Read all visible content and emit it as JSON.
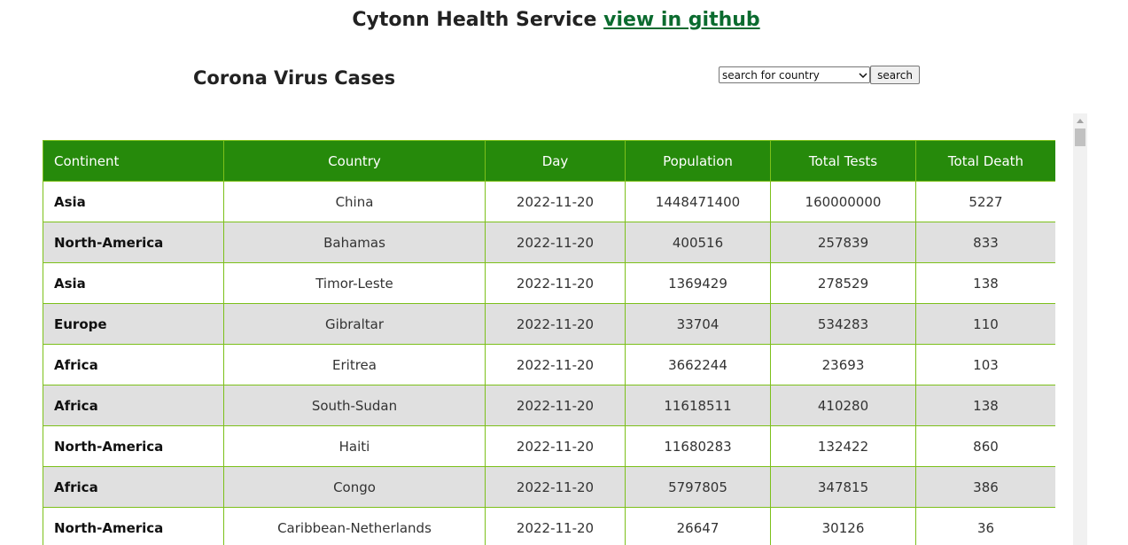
{
  "header": {
    "title": "Cytonn Health Service",
    "github_link": "view in github"
  },
  "main": {
    "heading": "Corona Virus Cases",
    "search": {
      "selected_option": "search for country",
      "button_label": "search"
    }
  },
  "table": {
    "columns": [
      "Continent",
      "Country",
      "Day",
      "Population",
      "Total Tests",
      "Total Death"
    ],
    "rows": [
      [
        "Asia",
        "China",
        "2022-11-20",
        "1448471400",
        "160000000",
        "5227"
      ],
      [
        "North-America",
        "Bahamas",
        "2022-11-20",
        "400516",
        "257839",
        "833"
      ],
      [
        "Asia",
        "Timor-Leste",
        "2022-11-20",
        "1369429",
        "278529",
        "138"
      ],
      [
        "Europe",
        "Gibraltar",
        "2022-11-20",
        "33704",
        "534283",
        "110"
      ],
      [
        "Africa",
        "Eritrea",
        "2022-11-20",
        "3662244",
        "23693",
        "103"
      ],
      [
        "Africa",
        "South-Sudan",
        "2022-11-20",
        "11618511",
        "410280",
        "138"
      ],
      [
        "North-America",
        "Haiti",
        "2022-11-20",
        "11680283",
        "132422",
        "860"
      ],
      [
        "Africa",
        "Congo",
        "2022-11-20",
        "5797805",
        "347815",
        "386"
      ],
      [
        "North-America",
        "Caribbean-Netherlands",
        "2022-11-20",
        "26647",
        "30126",
        "36"
      ]
    ]
  },
  "colors": {
    "header_bg": "#268a0b",
    "border": "#7cc01a",
    "link": "#0b6b2f",
    "alt_row": "#e0e0e0"
  },
  "icons": {
    "select_arrow": "chevron-down-icon",
    "scroll_up": "scroll-up-arrow-icon"
  }
}
